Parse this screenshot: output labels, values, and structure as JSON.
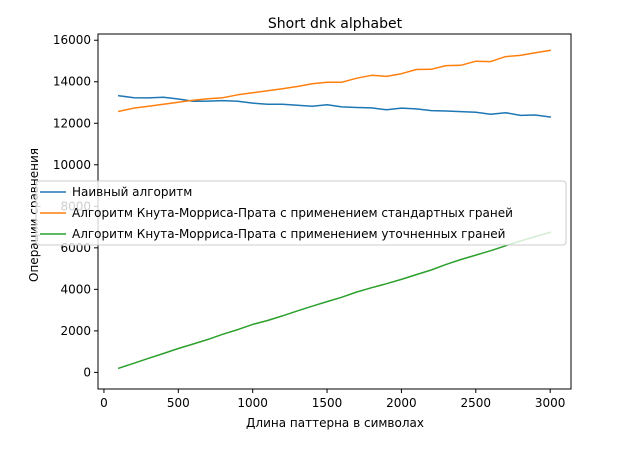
{
  "chart_data": {
    "type": "line",
    "title": "Short dnk alphabet",
    "xlabel": "Длина паттерна в символах",
    "ylabel": "Операции сравнения",
    "xlim": [
      -40,
      3140
    ],
    "ylim": [
      -800,
      16300
    ],
    "xticks": [
      0,
      500,
      1000,
      1500,
      2000,
      2500,
      3000
    ],
    "yticks": [
      0,
      2000,
      4000,
      6000,
      8000,
      10000,
      12000,
      14000,
      16000
    ],
    "legend_position": "center-left",
    "grid": false,
    "series": [
      {
        "name": "Наивный алгоритм",
        "color": "#1f77b4",
        "x": [
          100,
          200,
          300,
          400,
          500,
          600,
          700,
          800,
          900,
          1000,
          1100,
          1200,
          1300,
          1400,
          1500,
          1600,
          1700,
          1800,
          1900,
          2000,
          2100,
          2200,
          2300,
          2400,
          2500,
          2600,
          2700,
          2800,
          2900,
          3000
        ],
        "y": [
          13330,
          13230,
          13220,
          13250,
          13170,
          13060,
          13070,
          13090,
          13060,
          12970,
          12920,
          12920,
          12870,
          12820,
          12890,
          12790,
          12760,
          12740,
          12650,
          12730,
          12690,
          12610,
          12590,
          12560,
          12530,
          12430,
          12510,
          12380,
          12400,
          12300
        ]
      },
      {
        "name": "Алгоритм Кнута-Морриса-Прата с применением стандартных граней",
        "color": "#ff7f0e",
        "x": [
          100,
          200,
          300,
          400,
          500,
          600,
          700,
          800,
          900,
          1000,
          1100,
          1200,
          1300,
          1400,
          1500,
          1600,
          1700,
          1800,
          1900,
          2000,
          2100,
          2200,
          2300,
          2400,
          2500,
          2600,
          2700,
          2800,
          2900,
          3000
        ],
        "y": [
          12570,
          12730,
          12820,
          12920,
          13010,
          13110,
          13180,
          13230,
          13370,
          13470,
          13570,
          13660,
          13770,
          13900,
          13980,
          13980,
          14170,
          14310,
          14260,
          14390,
          14590,
          14600,
          14780,
          14790,
          14990,
          14970,
          15210,
          15270,
          15400,
          15510
        ]
      },
      {
        "name": "Алгоритм Кнута-Морриса-Прата с применением уточненных граней",
        "color": "#2ca02c",
        "x": [
          100,
          200,
          300,
          400,
          500,
          600,
          700,
          800,
          900,
          1000,
          1100,
          1200,
          1300,
          1400,
          1500,
          1600,
          1700,
          1800,
          1900,
          2000,
          2100,
          2200,
          2300,
          2400,
          2500,
          2600,
          2700,
          2800,
          2900,
          3000
        ],
        "y": [
          200,
          440,
          680,
          910,
          1150,
          1370,
          1590,
          1840,
          2060,
          2310,
          2500,
          2720,
          2960,
          3190,
          3410,
          3620,
          3870,
          4080,
          4270,
          4480,
          4710,
          4930,
          5200,
          5440,
          5650,
          5860,
          6100,
          6330,
          6540,
          6750
        ]
      }
    ]
  }
}
